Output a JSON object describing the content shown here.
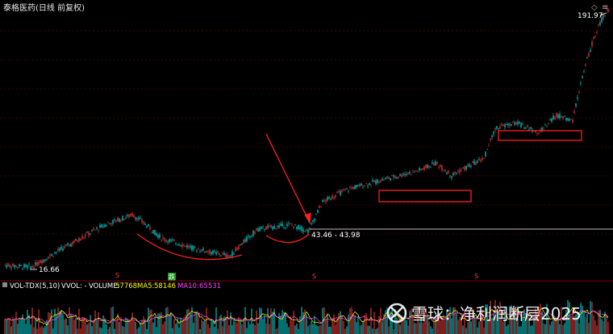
{
  "header": {
    "title": "泰格医药(日线 前复权)",
    "corner_icons": [
      "diamond-icon",
      "menu-icon"
    ]
  },
  "watermark": "雪球：净利润断层2025",
  "volume_panel": {
    "label": "VOL-TDX(5,10)",
    "vvol": "VVOL: -",
    "volume_label": "VOLUME:",
    "volume_value": "57768",
    "ma5_label": "MA5:",
    "ma5_value": "58146",
    "ma10_label": "MA10:",
    "ma10_value": "65531"
  },
  "colors": {
    "up": "#ff3c3c",
    "down": "#00e0e0",
    "background": "#000000",
    "grid": "#5a0000",
    "annotation": "#ff2020",
    "volume_label": "#ffffff",
    "volume_value": "#ffff00",
    "ma5": "#ffff00",
    "ma10": "#ff40ff",
    "badge": "#1a9a1a"
  },
  "chart_data": {
    "type": "candlestick",
    "y_scale": "log",
    "ylim": [
      15,
      200
    ],
    "annotations": {
      "low_label": "16.66",
      "high_label": "191.97",
      "range_label": "43.46 - 43.98",
      "event_marker": "S",
      "drop_badge": "跌"
    },
    "volume_panel_series": [
      "VOLUME",
      "MA5",
      "MA10"
    ]
  }
}
